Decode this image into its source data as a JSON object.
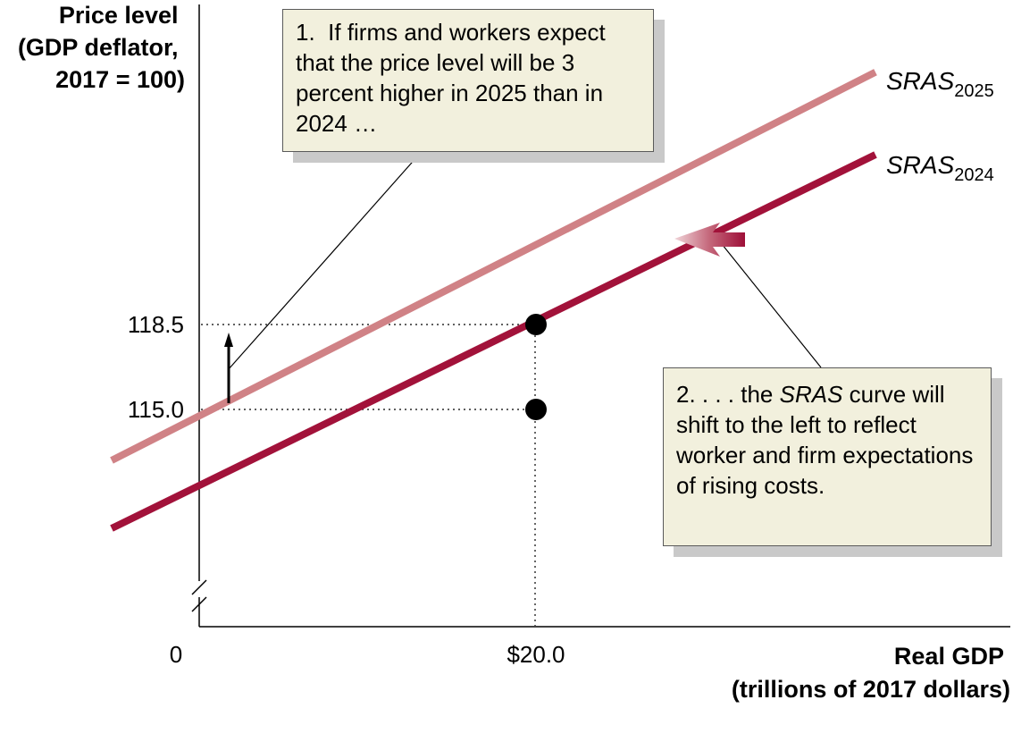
{
  "chart_data": {
    "type": "line",
    "ylabel_lines": [
      "Price level",
      "(GDP deflator,",
      "2017 = 100)"
    ],
    "xlabel_lines": [
      "Real GDP",
      "(trillions of 2017 dollars)"
    ],
    "origin_label": "0",
    "x_tick_labels": [
      {
        "value": 20.0,
        "label": "$20.0"
      }
    ],
    "y_tick_labels": [
      {
        "value": 118.5,
        "label": "118.5"
      },
      {
        "value": 115.0,
        "label": "115.0"
      }
    ],
    "series": [
      {
        "name_base": "SRAS",
        "name_sub": "2025",
        "color": "#d08286",
        "points": [
          [
            15.0,
            112.9
          ],
          [
            20.0,
            118.5
          ],
          [
            24.0,
            128.9
          ]
        ]
      },
      {
        "name_base": "SRAS",
        "name_sub": "2024",
        "color": "#a2123a",
        "points": [
          [
            15.0,
            110.1
          ],
          [
            20.0,
            115.0
          ],
          [
            24.0,
            125.5
          ]
        ]
      }
    ],
    "points": [
      {
        "x": 20.0,
        "y": 118.5
      },
      {
        "x": 20.0,
        "y": 115.0
      }
    ],
    "annotations": [
      {
        "id": "callout-1",
        "text": "1.  If firms and workers expect that the price level will be 3 percent higher in 2025 than in 2024 …"
      },
      {
        "id": "callout-2",
        "text_before": "2. . . . the ",
        "text_italic": "SRAS",
        "text_after": " curve will shift to the left to reflect worker and firm expectations of rising costs."
      }
    ],
    "axis_break": true,
    "grid": false
  }
}
